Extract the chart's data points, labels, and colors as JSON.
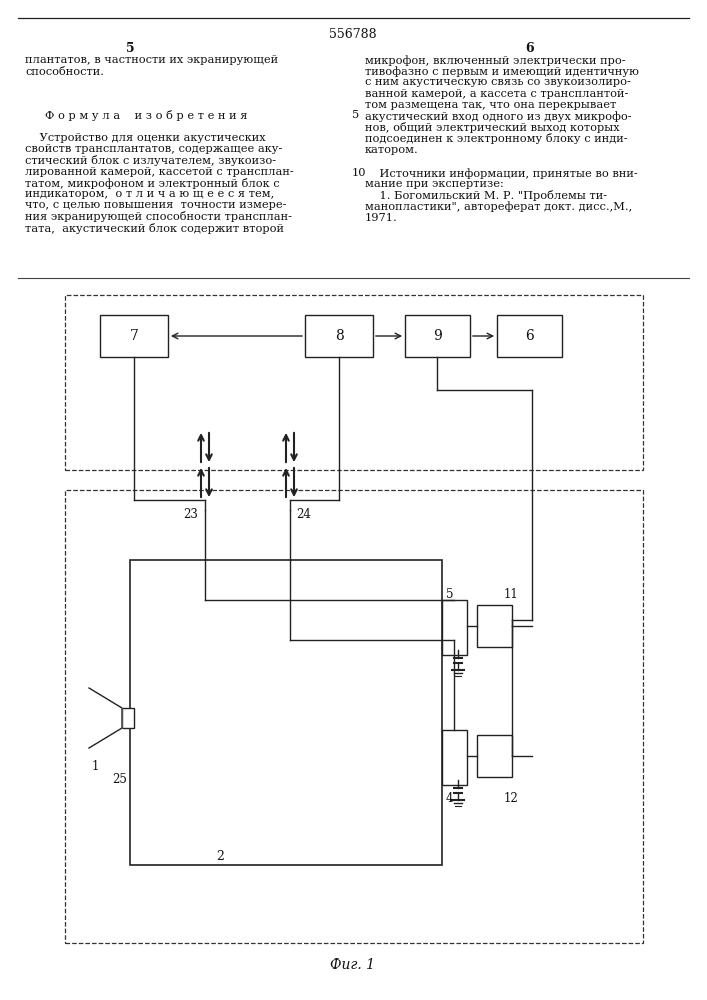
{
  "title": "556788",
  "page_col_left": "5",
  "page_col_right": "6",
  "text_left_top": "плантатов, в частности их экранирующей\nспособности.",
  "formula_header": "Ф о р м у л а    и з о б р е т е н и я",
  "text_left_body": "    Устройство для оценки акустических\nсвойств трансплантатов, содержащее аку-\nстический блок с излучателем, звукоизо-\nлированной камерой, кассетой с транспла-\nнтатом, микрофоном и электронный блок с\nиндикатором,  о т л и ч а ю щ е е с я тем,\nчто, с целью повышения  точности измере-\nния экранирующей способности транспла-\nнтата,  акустический блок содержит второй",
  "text_right_top": "микрофон, включенный электрически про-\nтивофазно с первым и имеющий идентичную\nс ним акустическую связь со звукоизолиро-\nванной камерой, а кассета с транспланта-\nтом размещена так, что она перекрывает\nакустический вход одного из двух микрофо-\nнов, общий электрический выход которых\nподсоединен к электронному блоку с инди-\nкатором.",
  "text_sources": "    Источники информации, принятые во вни-\nмание при экспертизе:",
  "text_source1": "    1. Богомильский М. Р. \"Проблемы ти-\nманопластики\", автореферат докт. дисс.,М.,\n1971.",
  "fig_label": "Фиг. 1",
  "line_number_5": "5",
  "line_number_10": "10",
  "bg_color": "#f5f5f0",
  "box_color": "#222222",
  "line_color": "#222222",
  "text_color": "#111111"
}
